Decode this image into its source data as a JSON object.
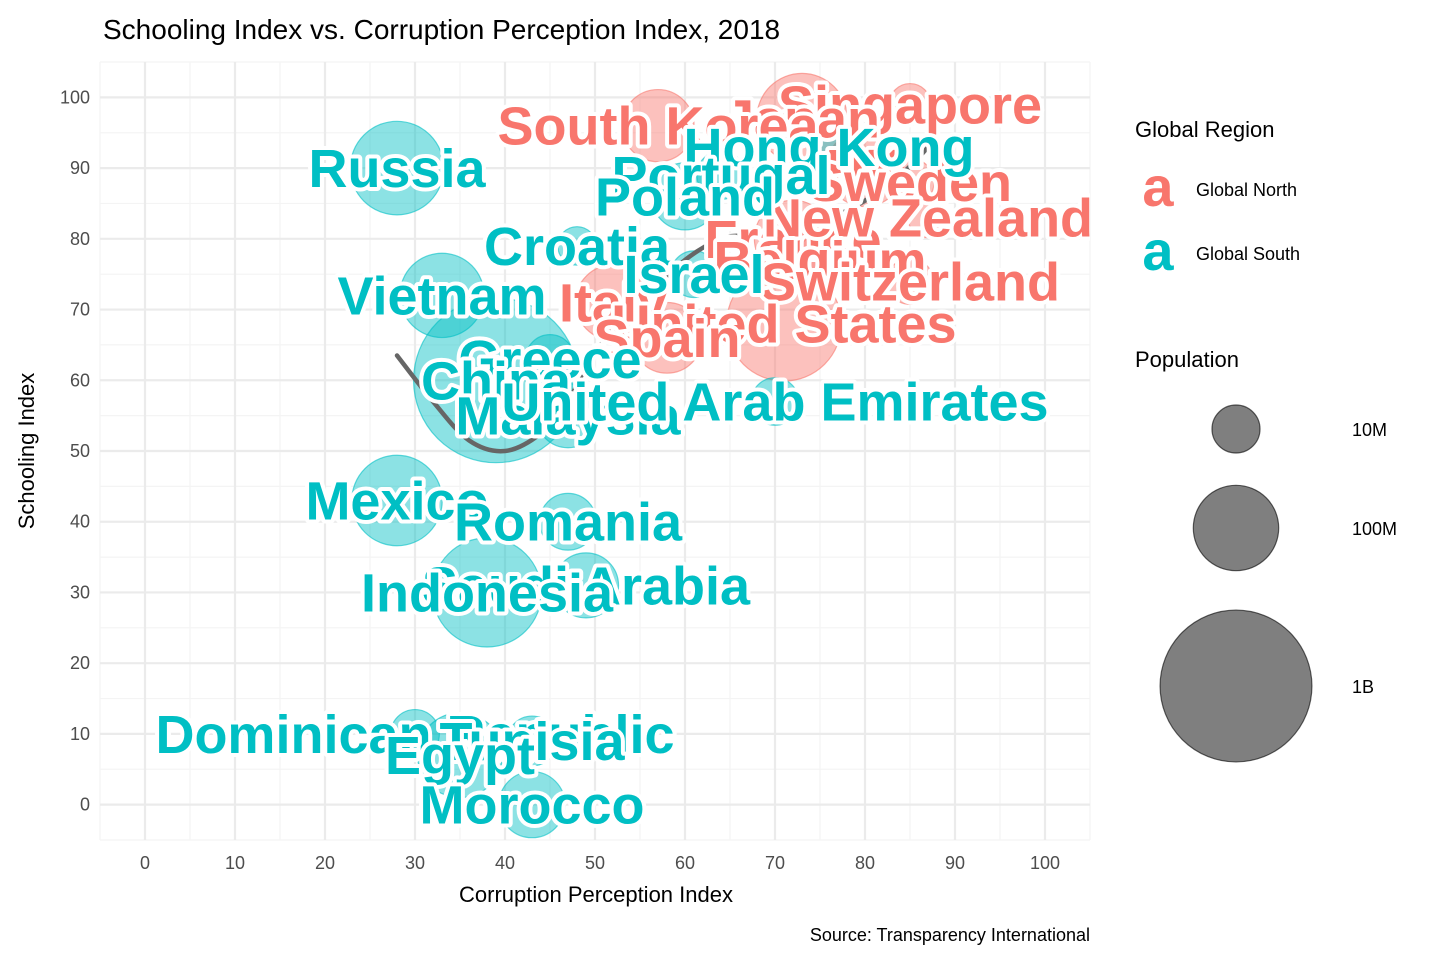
{
  "chart_data": {
    "type": "scatter",
    "title": "Schooling Index vs. Corruption Perception Index, 2018",
    "xlabel": "Corruption Perception Index",
    "ylabel": "Schooling Index",
    "caption": "Source: Transparency International",
    "xlim": [
      -5,
      105
    ],
    "ylim": [
      -5,
      105
    ],
    "x_ticks": [
      "0",
      "10",
      "20",
      "30",
      "40",
      "50",
      "60",
      "70",
      "80",
      "90",
      "100"
    ],
    "y_ticks": [
      "0",
      "10",
      "20",
      "30",
      "40",
      "50",
      "60",
      "70",
      "80",
      "90",
      "100"
    ],
    "grid": true,
    "legend_position": "right",
    "colors": {
      "Global North": "#F8766D",
      "Global South": "#00BFC4"
    },
    "legend": {
      "color_title": "Global Region",
      "color_entries": [
        {
          "label": "Global North",
          "glyph": "a",
          "color": "#F8766D"
        },
        {
          "label": "Global South",
          "glyph": "a",
          "color": "#00BFC4"
        }
      ],
      "size_title": "Population",
      "size_entries": [
        {
          "label": "10M",
          "population": 10000000
        },
        {
          "label": "100M",
          "population": 100000000
        },
        {
          "label": "1B",
          "population": 1000000000
        }
      ]
    },
    "series": [
      {
        "name": "Global North",
        "points": [
          {
            "country": "Singapore",
            "x": 85,
            "y": 99,
            "population": 5700000
          },
          {
            "country": "Japan",
            "x": 73,
            "y": 97,
            "population": 126000000
          },
          {
            "country": "South Korea",
            "x": 57,
            "y": 96,
            "population": 51000000
          },
          {
            "country": "UK",
            "x": 80,
            "y": 90,
            "population": 66000000
          },
          {
            "country": "Sweden",
            "x": 85,
            "y": 88,
            "population": 10000000
          },
          {
            "country": "France",
            "x": 72,
            "y": 80,
            "population": 67000000
          },
          {
            "country": "New Zealand",
            "x": 87,
            "y": 83,
            "population": 4900000
          },
          {
            "country": "Belgium",
            "x": 75,
            "y": 77,
            "population": 11400000
          },
          {
            "country": "Switzerland",
            "x": 85,
            "y": 74,
            "population": 8500000
          },
          {
            "country": "Italy",
            "x": 52,
            "y": 71,
            "population": 60000000
          },
          {
            "country": "United States",
            "x": 71,
            "y": 68,
            "population": 327000000
          },
          {
            "country": "Spain",
            "x": 58,
            "y": 66,
            "population": 47000000
          }
        ]
      },
      {
        "name": "Global South",
        "points": [
          {
            "country": "Hong Kong",
            "x": 76,
            "y": 93,
            "population": 7500000
          },
          {
            "country": "Portugal",
            "x": 64,
            "y": 89,
            "population": 10300000
          },
          {
            "country": "Russia",
            "x": 28,
            "y": 90,
            "population": 144000000
          },
          {
            "country": "Poland",
            "x": 60,
            "y": 86,
            "population": 38000000
          },
          {
            "country": "Croatia",
            "x": 48,
            "y": 79,
            "population": 4100000
          },
          {
            "country": "Israel",
            "x": 61,
            "y": 75,
            "population": 8900000
          },
          {
            "country": "Vietnam",
            "x": 33,
            "y": 72,
            "population": 95000000
          },
          {
            "country": "Greece",
            "x": 45,
            "y": 63,
            "population": 10700000
          },
          {
            "country": "China",
            "x": 39,
            "y": 60,
            "population": 1390000000
          },
          {
            "country": "Malaysia",
            "x": 47,
            "y": 55,
            "population": 32000000
          },
          {
            "country": "United Arab Emirates",
            "x": 70,
            "y": 57,
            "population": 9600000
          },
          {
            "country": "Mexico",
            "x": 28,
            "y": 43,
            "population": 126000000
          },
          {
            "country": "Romania",
            "x": 47,
            "y": 40,
            "population": 19500000
          },
          {
            "country": "Saudi Arabia",
            "x": 49,
            "y": 31,
            "population": 33700000
          },
          {
            "country": "Indonesia",
            "x": 38,
            "y": 30,
            "population": 267000000
          },
          {
            "country": "Dominican Republic",
            "x": 30,
            "y": 10,
            "population": 10600000
          },
          {
            "country": "Tunisia",
            "x": 43,
            "y": 9,
            "population": 11600000
          },
          {
            "country": "Egypt",
            "x": 35,
            "y": 7,
            "population": 98000000
          },
          {
            "country": "Morocco",
            "x": 43,
            "y": 0,
            "population": 36000000
          }
        ]
      }
    ],
    "trend_line": {
      "type": "smooth",
      "color": "#666666",
      "points": [
        {
          "x": 28,
          "y": 63.5
        },
        {
          "x": 32,
          "y": 57
        },
        {
          "x": 36,
          "y": 51.5
        },
        {
          "x": 40,
          "y": 50
        },
        {
          "x": 44,
          "y": 52.5
        },
        {
          "x": 47,
          "y": 57
        },
        {
          "x": 50,
          "y": 64
        },
        {
          "x": 55,
          "y": 71
        },
        {
          "x": 60,
          "y": 77
        },
        {
          "x": 64,
          "y": 80
        },
        {
          "x": 67,
          "y": 80.5
        },
        {
          "x": 72,
          "y": 81
        },
        {
          "x": 78,
          "y": 84
        },
        {
          "x": 83,
          "y": 88
        },
        {
          "x": 87,
          "y": 93
        },
        {
          "x": 88,
          "y": 96
        }
      ]
    }
  }
}
